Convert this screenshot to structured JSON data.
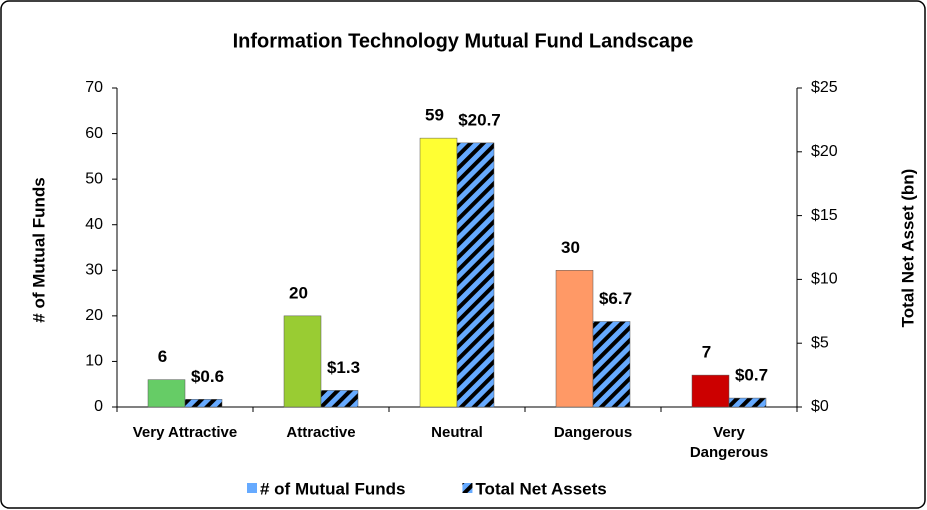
{
  "chart_data": {
    "type": "bar",
    "title": "Information Technology Mutual Fund Landscape",
    "y_label": "# of Mutual Funds",
    "y2_label": "Total Net Asset (bn)",
    "categories": [
      "Very Attractive",
      "Attractive",
      "Neutral",
      "Dangerous",
      "Very\nDangerous"
    ],
    "series": [
      {
        "name": "# of Mutual Funds",
        "color": "#66aaff",
        "colors": [
          "#66cc66",
          "#99cc33",
          "#ffff33",
          "#ff9966",
          "#cc0000"
        ],
        "values": [
          6,
          20,
          59,
          30,
          7
        ]
      },
      {
        "name": "Total Net Assets",
        "color": "#66aaff",
        "hatch_color": "#000000",
        "axis": "y2",
        "values": [
          0.6,
          1.3,
          20.7,
          6.7,
          0.7
        ],
        "value_labels": [
          "$0.6",
          "$1.3",
          "$20.7",
          "$6.7",
          "$0.7"
        ]
      }
    ],
    "ylim": [
      0,
      70
    ],
    "yticks": [
      0,
      10,
      20,
      30,
      40,
      50,
      60,
      70
    ],
    "y2lim": [
      0,
      25
    ],
    "y2ticks": [
      {
        "value": 0,
        "label": "$0"
      },
      {
        "value": 5,
        "label": "$5"
      },
      {
        "value": 10,
        "label": "$10"
      },
      {
        "value": 15,
        "label": "$15"
      },
      {
        "value": 20,
        "label": "$20"
      },
      {
        "value": 25,
        "label": "$25"
      }
    ],
    "grid": false,
    "legend": "bottom"
  }
}
